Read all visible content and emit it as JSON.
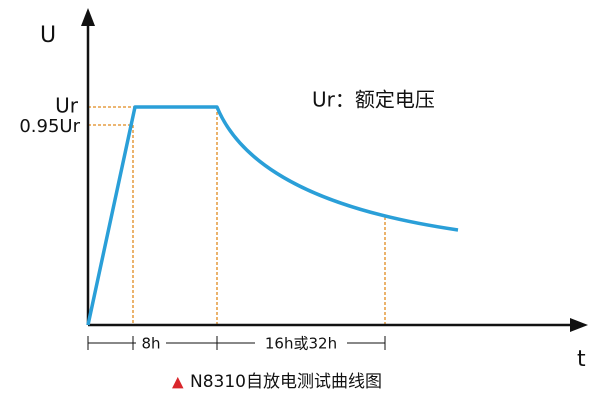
{
  "axes": {
    "y_label": "U",
    "x_label": "t"
  },
  "levels": {
    "rated": "Ur",
    "reduced": "0.95Ur"
  },
  "legend_note": "Ur：额定电压",
  "durations": {
    "first": "8h",
    "second": "16h或32h"
  },
  "caption": {
    "marker": "▲",
    "text": "N8310自放电测试曲线图"
  }
}
